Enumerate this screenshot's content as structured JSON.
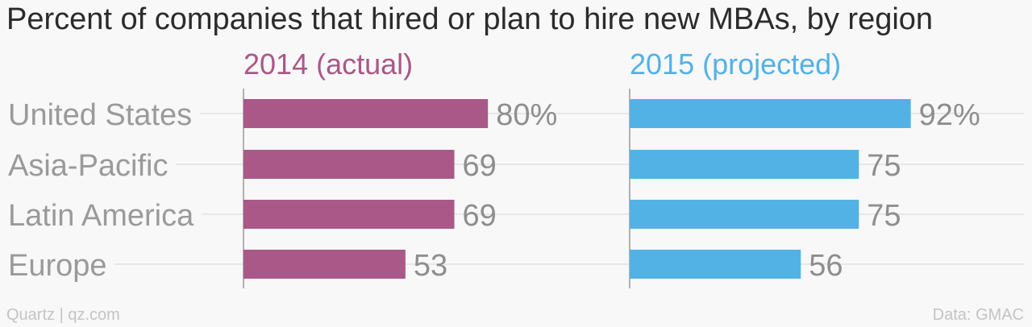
{
  "chart_data": {
    "type": "bar",
    "orientation": "horizontal",
    "title": "Percent of companies that hired or plan to hire new MBAs, by region",
    "categories": [
      "United States",
      "Asia-Pacific",
      "Latin America",
      "Europe"
    ],
    "series": [
      {
        "name": "2014 (actual)",
        "color": "#a95888",
        "values": [
          80,
          69,
          69,
          53
        ],
        "value_labels": [
          "80%",
          "69",
          "69",
          "53"
        ]
      },
      {
        "name": "2015 (projected)",
        "color": "#52b2e6",
        "values": [
          92,
          75,
          75,
          56
        ],
        "value_labels": [
          "92%",
          "75",
          "75",
          "56"
        ]
      }
    ],
    "xlim": [
      0,
      100
    ],
    "grid": true,
    "source": "Data: GMAC",
    "credit": "Quartz | qz.com"
  }
}
